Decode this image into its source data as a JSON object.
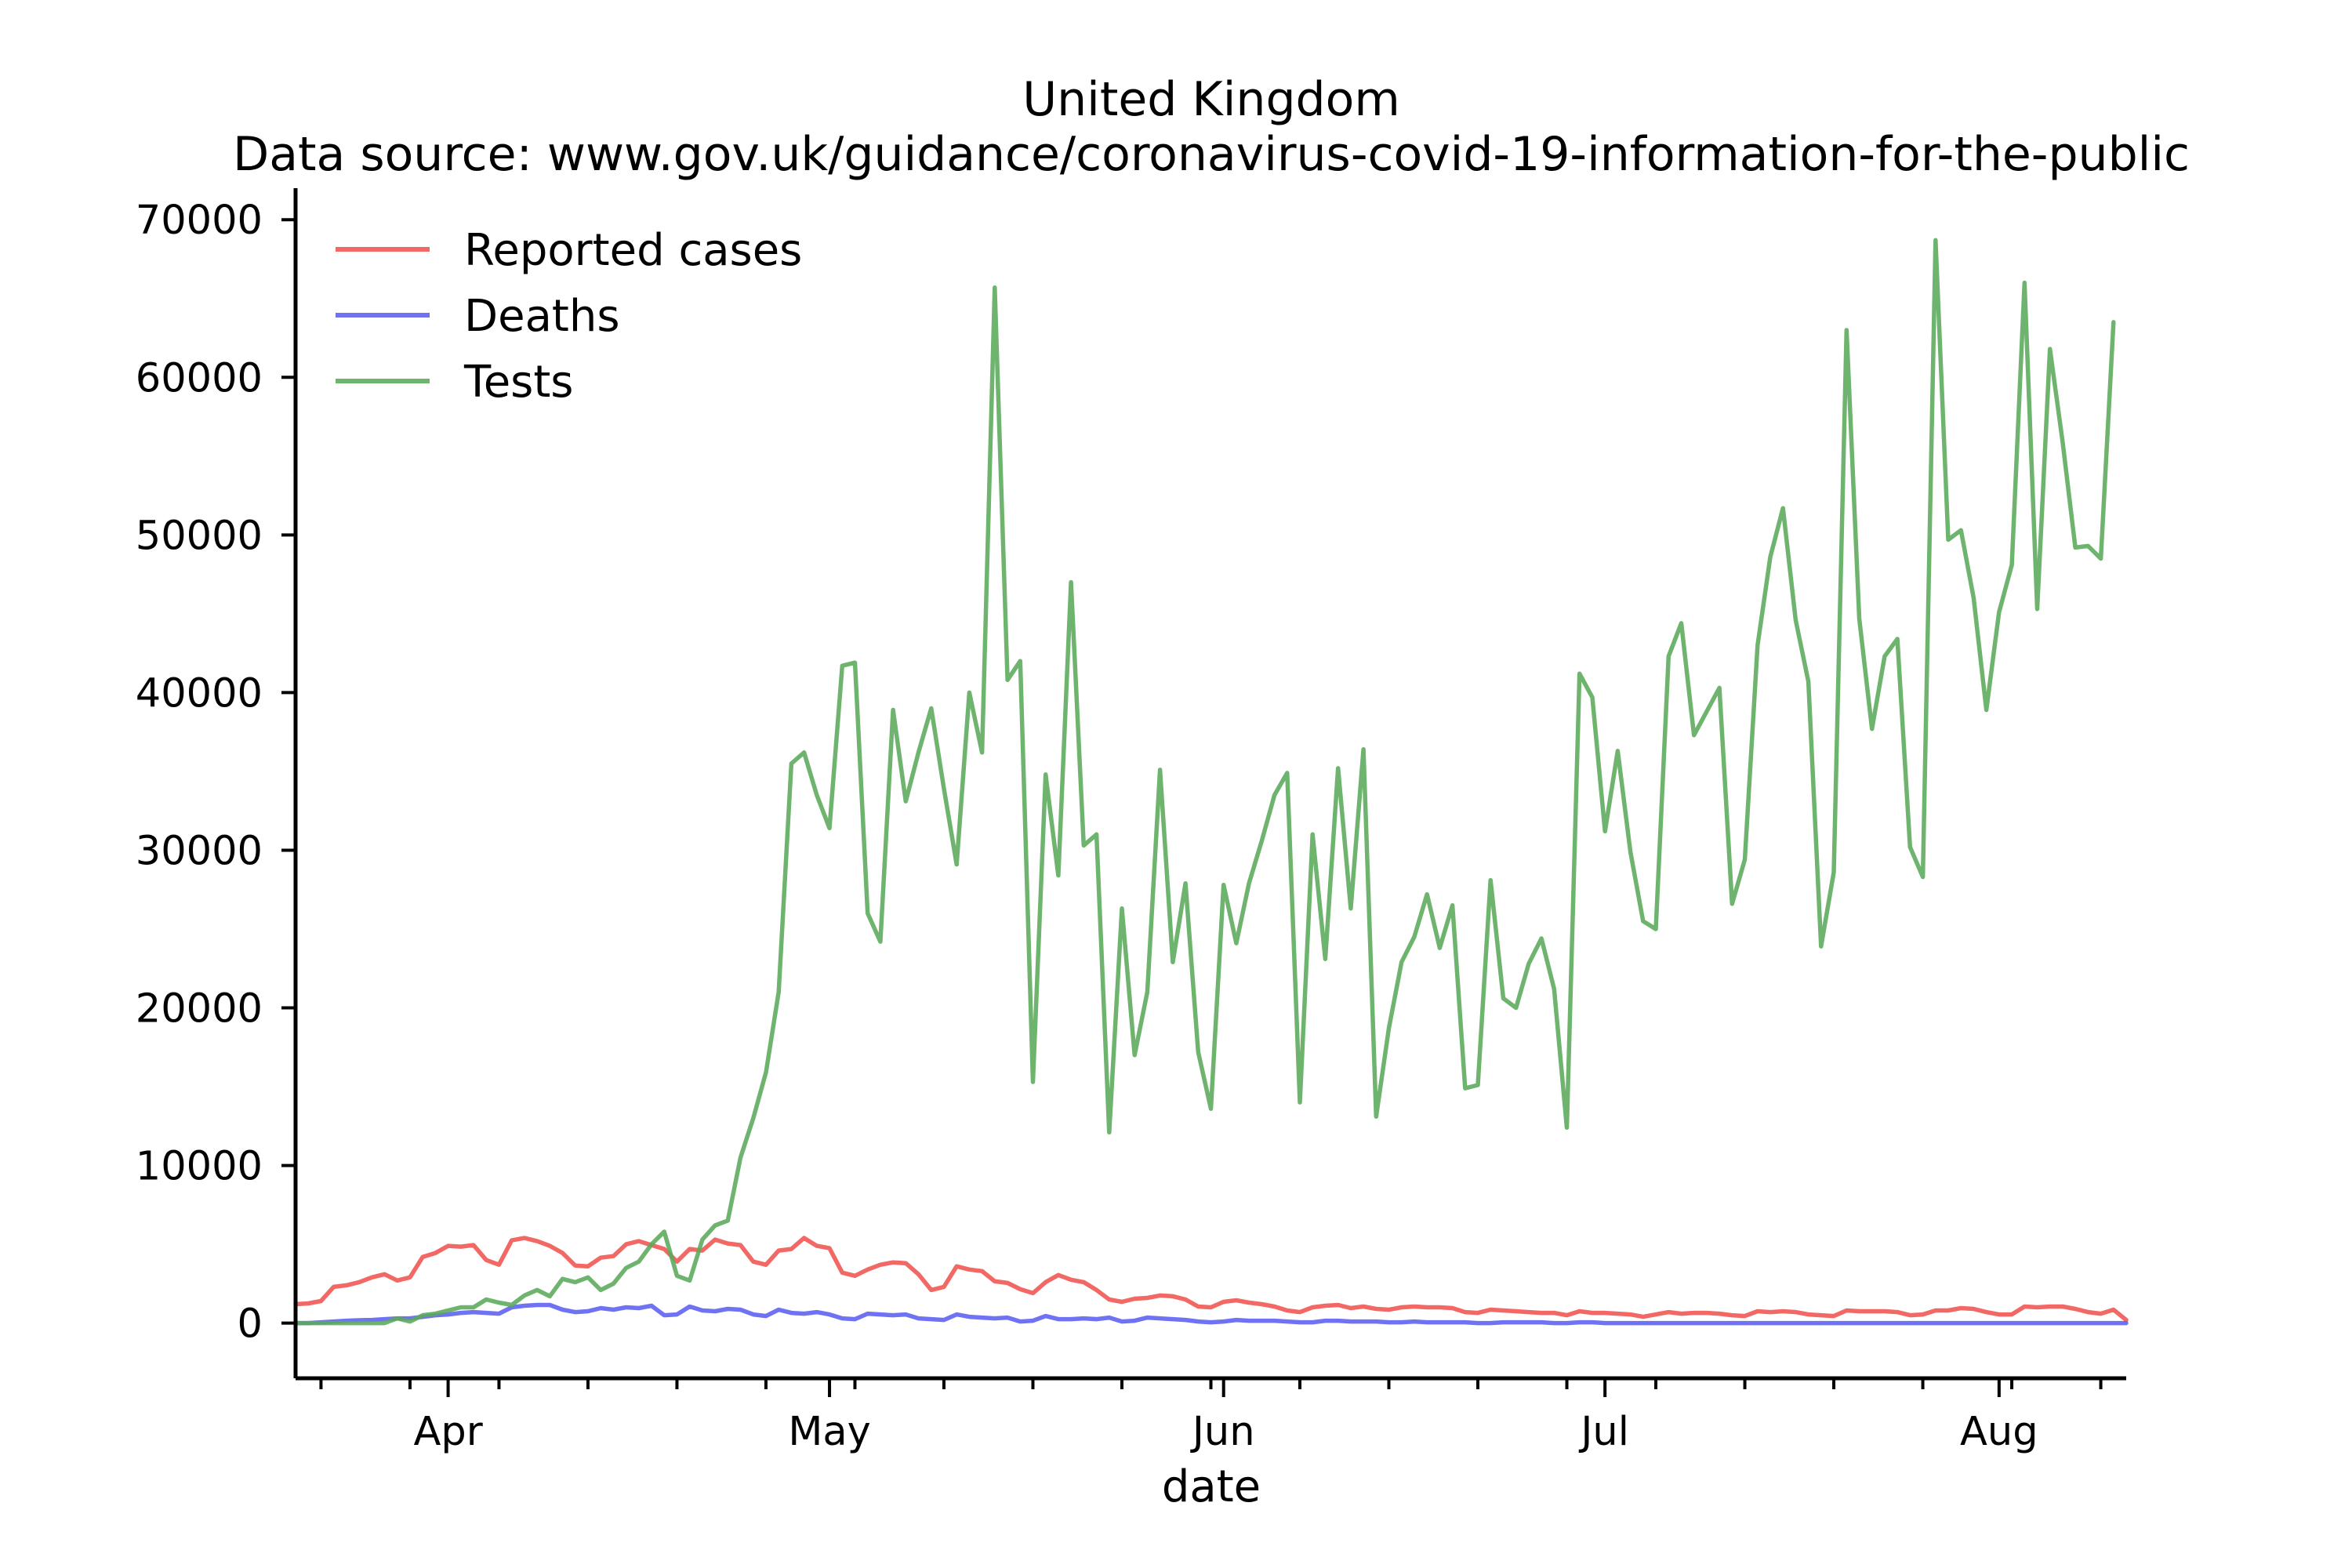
{
  "chart_data": {
    "type": "line",
    "title": "United Kingdom",
    "subtitle": "Data source: www.gov.uk/guidance/coronavirus-covid-19-information-for-the-public",
    "xlabel": "date",
    "ylabel": "",
    "x_start": "2020-03-20",
    "ylim": [
      -3500,
      72000
    ],
    "y_ticks": [
      0,
      10000,
      20000,
      30000,
      40000,
      50000,
      60000,
      70000
    ],
    "y_tick_labels": [
      "0",
      "10000",
      "20000",
      "30000",
      "40000",
      "50000",
      "60000",
      "70000"
    ],
    "x_ticks": [
      {
        "date": "2020-04-01",
        "label": "Apr"
      },
      {
        "date": "2020-05-01",
        "label": "May"
      },
      {
        "date": "2020-06-01",
        "label": "Jun"
      },
      {
        "date": "2020-07-01",
        "label": "Jul"
      },
      {
        "date": "2020-08-01",
        "label": "Aug"
      }
    ],
    "grid": false,
    "legend_position": "top-left",
    "series": [
      {
        "name": "Reported cases",
        "color": "#ef5350",
        "values": [
          1200,
          1250,
          1400,
          2300,
          2400,
          2600,
          2900,
          3100,
          2700,
          2900,
          4200,
          4450,
          4900,
          4850,
          4950,
          4000,
          3700,
          5250,
          5400,
          5200,
          4900,
          4450,
          3650,
          3600,
          4150,
          4250,
          5000,
          5200,
          4950,
          4700,
          3900,
          4700,
          4600,
          5300,
          5050,
          4950,
          3900,
          3700,
          4600,
          4700,
          5400,
          4900,
          4750,
          3200,
          3000,
          3400,
          3700,
          3850,
          3800,
          3100,
          2100,
          2300,
          3600,
          3400,
          3300,
          2650,
          2550,
          2150,
          1900,
          2600,
          3050,
          2750,
          2600,
          2100,
          1500,
          1350,
          1550,
          1600,
          1750,
          1700,
          1500,
          1050,
          1000,
          1350,
          1450,
          1300,
          1200,
          1050,
          800,
          700,
          1000,
          1100,
          1150,
          950,
          1050,
          900,
          850,
          1000,
          1050,
          1000,
          1000,
          950,
          700,
          650,
          850,
          800,
          750,
          700,
          650,
          650,
          500,
          750,
          650,
          650,
          600,
          550,
          400,
          550,
          700,
          600,
          650,
          650,
          600,
          500,
          450,
          750,
          700,
          750,
          700,
          550,
          500,
          450,
          800,
          750,
          750,
          750,
          700,
          500,
          550,
          800,
          800,
          950,
          900,
          700,
          550,
          550,
          1050,
          1000,
          1050,
          1050,
          900,
          700,
          600,
          850,
          200
        ]
      },
      {
        "name": "Deaths",
        "color": "#5b5ff0",
        "values": [
          0,
          0,
          50,
          100,
          150,
          180,
          200,
          250,
          300,
          300,
          400,
          500,
          550,
          650,
          700,
          650,
          600,
          1000,
          1100,
          1150,
          1150,
          850,
          700,
          750,
          950,
          850,
          1000,
          950,
          1100,
          500,
          550,
          1050,
          800,
          750,
          900,
          850,
          550,
          450,
          850,
          650,
          600,
          700,
          550,
          300,
          250,
          600,
          550,
          500,
          550,
          300,
          250,
          200,
          550,
          400,
          350,
          300,
          350,
          100,
          150,
          450,
          250,
          250,
          300,
          250,
          350,
          100,
          150,
          350,
          300,
          250,
          200,
          100,
          50,
          100,
          200,
          150,
          150,
          150,
          100,
          50,
          50,
          150,
          150,
          100,
          100,
          100,
          50,
          50,
          100,
          50,
          50,
          50,
          50,
          0,
          0,
          50,
          50,
          50,
          50,
          0,
          0,
          50,
          50,
          0,
          0,
          0,
          0,
          0,
          0,
          0,
          0,
          0,
          0,
          0,
          0,
          0,
          0,
          0,
          0,
          0,
          0,
          0,
          0,
          0,
          0,
          0,
          0,
          0,
          0,
          0,
          0,
          0,
          0,
          0,
          0,
          0,
          0,
          0,
          0,
          0,
          0,
          0,
          0,
          0,
          0
        ]
      },
      {
        "name": "Tests",
        "color": "#5aaa5a",
        "values": [
          0,
          0,
          0,
          0,
          0,
          0,
          0,
          0,
          300,
          100,
          500,
          600,
          800,
          1000,
          1000,
          1500,
          1300,
          1150,
          1750,
          2100,
          1700,
          2800,
          2600,
          2900,
          2100,
          2500,
          3500,
          3900,
          5000,
          5800,
          3000,
          2700,
          5300,
          6200,
          6500,
          10500,
          13000,
          15900,
          21000,
          35500,
          36200,
          33500,
          31400,
          41700,
          41900,
          26000,
          24200,
          38900,
          33100,
          36200,
          39000,
          33900,
          29100,
          40000,
          36200,
          65700,
          40800,
          42000,
          15300,
          34800,
          28400,
          47000,
          30300,
          31000,
          12100,
          26300,
          17000,
          21000,
          35100,
          22900,
          27900,
          17200,
          13600,
          27800,
          24100,
          27900,
          30600,
          33500,
          34900,
          14000,
          31000,
          23100,
          35200,
          26300,
          36400,
          13100,
          18700,
          22900,
          24500,
          27200,
          23800,
          26500,
          14900,
          15100,
          28100,
          20600,
          20000,
          22800,
          24400,
          21200,
          12400,
          41200,
          39700,
          31200,
          36300,
          29900,
          25500,
          25000,
          42300,
          44400,
          37300,
          38800,
          40300,
          26600,
          29400,
          43000,
          48600,
          51700,
          44600,
          40700,
          23900,
          28600,
          63000,
          44700,
          37700,
          42300,
          43400,
          30200,
          28300,
          68700,
          49700,
          50300,
          46000,
          38900,
          45100,
          48100,
          66000,
          45300,
          61800,
          55900,
          49200,
          49300,
          48500,
          63500
        ]
      }
    ]
  }
}
